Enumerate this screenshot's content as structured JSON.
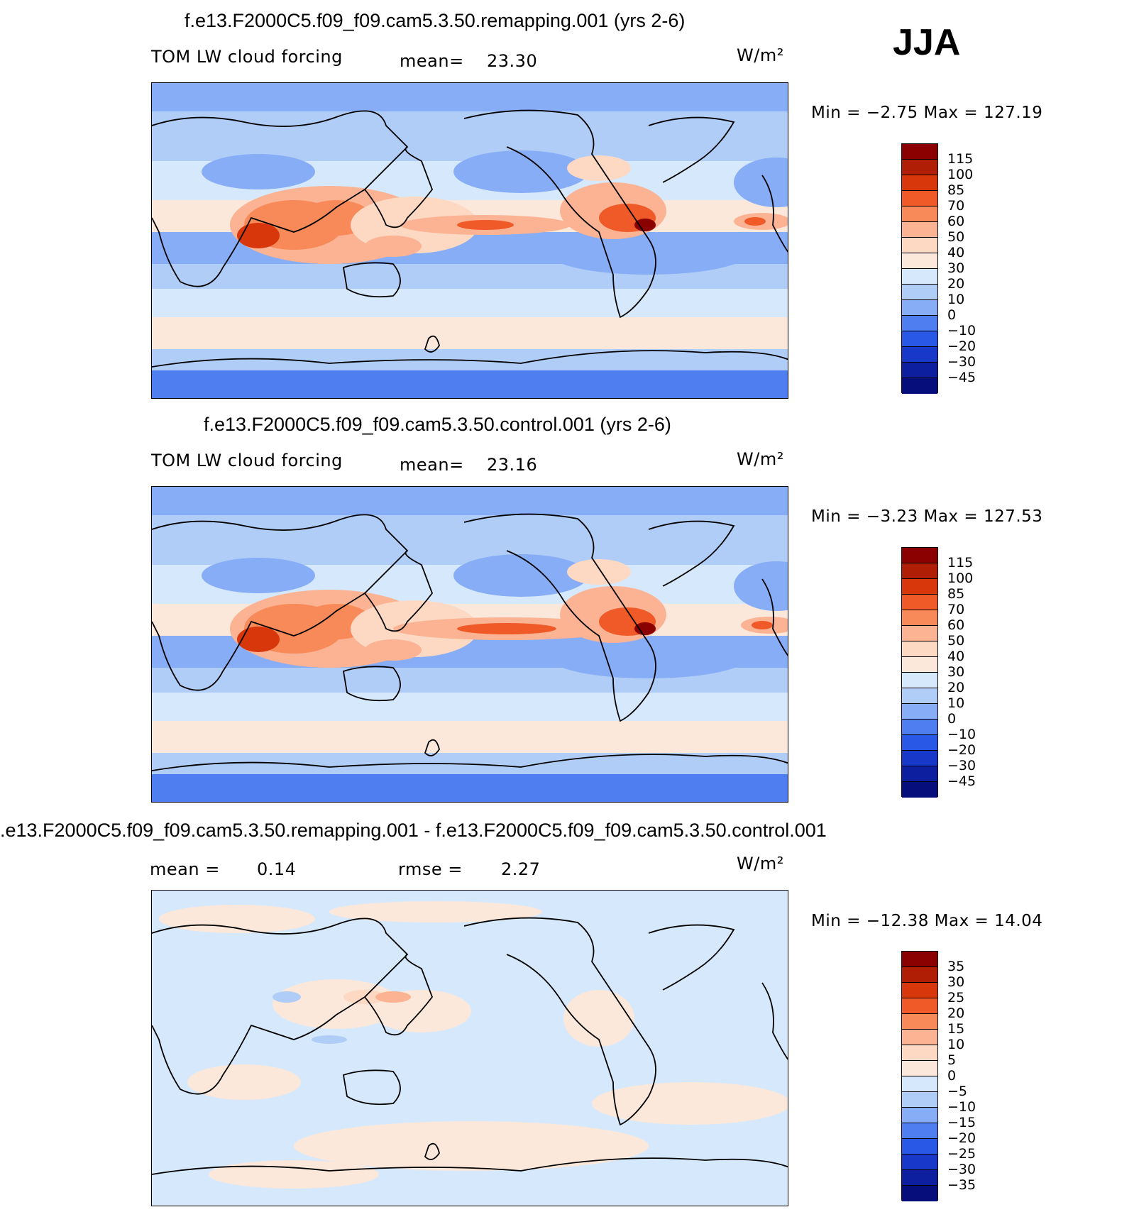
{
  "season": "JJA",
  "panels": [
    {
      "title": "f.e13.F2000C5.f09_f09.cam5.3.50.remapping.001 (yrs 2-6)",
      "left_label": "TOM LW cloud forcing",
      "stat1_label": "mean=",
      "stat1_value": "23.30",
      "units": "W/m²",
      "min_max": "Min =   −2.75 Max = 127.19",
      "levels": [
        "115",
        "100",
        "85",
        "70",
        "60",
        "50",
        "40",
        "30",
        "20",
        "10",
        "0",
        "−10",
        "−20",
        "−30",
        "−45"
      ],
      "colors": [
        "#8b0000",
        "#b01e06",
        "#d8360b",
        "#f05a28",
        "#f88a5a",
        "#fbb393",
        "#fdd9c3",
        "#fbe8da",
        "#d6e8fb",
        "#b0cdf7",
        "#86adf5",
        "#4f7ef0",
        "#2a58e6",
        "#1738c8",
        "#0d1f9e",
        "#050e7a"
      ]
    },
    {
      "title": "f.e13.F2000C5.f09_f09.cam5.3.50.control.001 (yrs 2-6)",
      "left_label": "TOM LW cloud forcing",
      "stat1_label": "mean=",
      "stat1_value": "23.16",
      "units": "W/m²",
      "min_max": "Min =   −3.23 Max = 127.53",
      "levels": [
        "115",
        "100",
        "85",
        "70",
        "60",
        "50",
        "40",
        "30",
        "20",
        "10",
        "0",
        "−10",
        "−20",
        "−30",
        "−45"
      ],
      "colors": [
        "#8b0000",
        "#b01e06",
        "#d8360b",
        "#f05a28",
        "#f88a5a",
        "#fbb393",
        "#fdd9c3",
        "#fbe8da",
        "#d6e8fb",
        "#b0cdf7",
        "#86adf5",
        "#4f7ef0",
        "#2a58e6",
        "#1738c8",
        "#0d1f9e",
        "#050e7a"
      ]
    },
    {
      "title": ".e13.F2000C5.f09_f09.cam5.3.50.remapping.001 - f.e13.F2000C5.f09_f09.cam5.3.50.control.001",
      "left_label": "mean =",
      "left_value": "0.14",
      "stat1_label": "rmse =",
      "stat1_value": "2.27",
      "units": "W/m²",
      "min_max": "Min = −12.38 Max =    14.04",
      "levels": [
        "35",
        "30",
        "25",
        "20",
        "15",
        "10",
        "5",
        "0",
        "−5",
        "−10",
        "−15",
        "−20",
        "−25",
        "−30",
        "−35"
      ],
      "colors": [
        "#8b0000",
        "#b01e06",
        "#d8360b",
        "#f05a28",
        "#f88a5a",
        "#fbb393",
        "#fdd9c3",
        "#fbe8da",
        "#d6e8fb",
        "#b0cdf7",
        "#86adf5",
        "#4f7ef0",
        "#2a58e6",
        "#1738c8",
        "#0d1f9e",
        "#050e7a"
      ]
    }
  ],
  "map_colors": {
    "deep_blue": "#4f7ef0",
    "mid_blue": "#86adf5",
    "light_blue": "#b0cdf7",
    "pale_blue": "#d6e8fb",
    "cream": "#fbe8da",
    "peach": "#fdd9c3",
    "salmon": "#fbb393",
    "orange": "#f88a5a",
    "red_orange": "#f05a28",
    "dark_red": "#d8360b"
  }
}
